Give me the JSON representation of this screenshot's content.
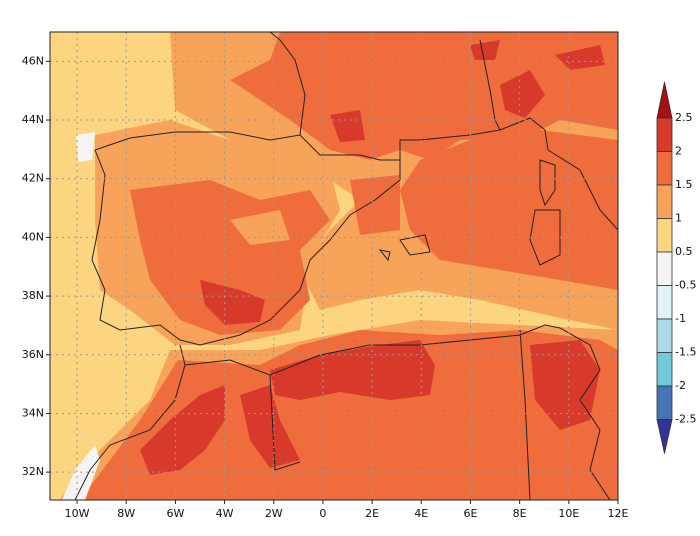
{
  "map": {
    "lat_ticks": [
      {
        "value": 46,
        "label": "46N"
      },
      {
        "value": 44,
        "label": "44N"
      },
      {
        "value": 42,
        "label": "42N"
      },
      {
        "value": 40,
        "label": "40N"
      },
      {
        "value": 38,
        "label": "38N"
      },
      {
        "value": 36,
        "label": "36N"
      },
      {
        "value": 34,
        "label": "34N"
      },
      {
        "value": 32,
        "label": "32N"
      }
    ],
    "lon_ticks": [
      {
        "value": -10,
        "label": "10W"
      },
      {
        "value": -8,
        "label": "8W"
      },
      {
        "value": -6,
        "label": "6W"
      },
      {
        "value": -4,
        "label": "4W"
      },
      {
        "value": -2,
        "label": "2W"
      },
      {
        "value": 0,
        "label": "0"
      },
      {
        "value": 2,
        "label": "2E"
      },
      {
        "value": 4,
        "label": "4E"
      },
      {
        "value": 6,
        "label": "6E"
      },
      {
        "value": 8,
        "label": "8E"
      },
      {
        "value": 10,
        "label": "10E"
      },
      {
        "value": 12,
        "label": "12E"
      }
    ],
    "lat_range": [
      31.05,
      47
    ],
    "lon_range": [
      -11.1,
      12
    ]
  },
  "colorbar": {
    "levels": [
      2.5,
      2,
      1.5,
      1,
      0.5,
      -0.5,
      -1,
      -1.5,
      -2,
      -2.5
    ],
    "colors": [
      "#a50f15",
      "#d7392a",
      "#ef6d3c",
      "#f8a35a",
      "#fcd581",
      "#f4f4f4",
      "#e1f3f8",
      "#abd9e9",
      "#6fcbd8",
      "#4575b4",
      "#313695"
    ]
  }
}
